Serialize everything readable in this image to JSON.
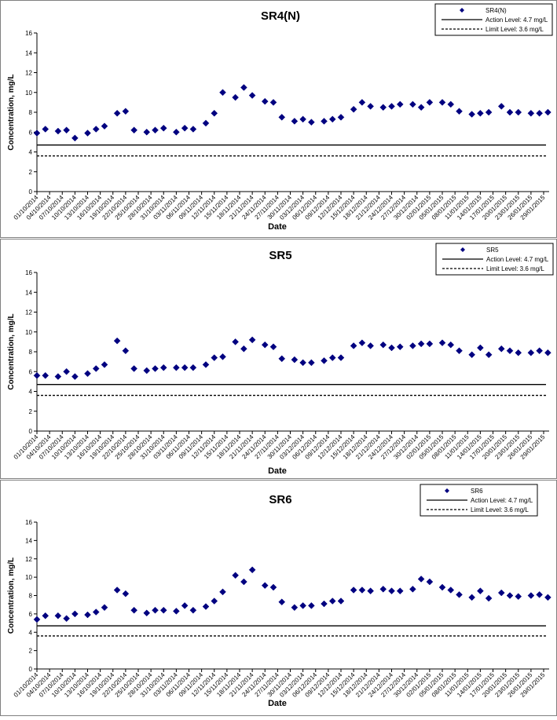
{
  "colors": {
    "marker": "#000080",
    "line": "#000000",
    "panel_border": "#808080"
  },
  "chart_data": [
    {
      "type": "scatter",
      "title": "SR4(N)",
      "xlabel": "Date",
      "ylabel": "Concentration, mg/L",
      "ylim": [
        0,
        16
      ],
      "yticks": [
        0,
        2,
        4,
        6,
        8,
        10,
        12,
        14,
        16
      ],
      "xticks": [
        "01/10/2014",
        "04/10/2014",
        "07/10/2014",
        "10/10/2014",
        "13/10/2014",
        "16/10/2014",
        "19/10/2014",
        "22/10/2014",
        "25/10/2014",
        "28/10/2014",
        "31/10/2014",
        "03/11/2014",
        "06/11/2014",
        "09/11/2014",
        "12/11/2014",
        "15/11/2014",
        "18/11/2014",
        "21/11/2014",
        "24/11/2014",
        "27/11/2014",
        "30/11/2014",
        "03/12/2014",
        "06/12/2014",
        "09/12/2014",
        "12/12/2014",
        "15/12/2014",
        "18/12/2014",
        "21/12/2014",
        "24/12/2014",
        "27/12/2014",
        "30/12/2014",
        "02/01/2015",
        "05/01/2015",
        "08/01/2015",
        "11/01/2015",
        "14/01/2015",
        "17/01/2015",
        "20/01/2015",
        "23/01/2015",
        "26/01/2015",
        "29/01/2015"
      ],
      "grid": false,
      "legend_position": "top-right",
      "series": [
        {
          "name": "SR4(N)",
          "marker": "diamond",
          "x": [
            "01/10/2014",
            "03/10/2014",
            "06/10/2014",
            "08/10/2014",
            "10/10/2014",
            "13/10/2014",
            "15/10/2014",
            "17/10/2014",
            "20/10/2014",
            "22/10/2014",
            "24/10/2014",
            "27/10/2014",
            "29/10/2014",
            "31/10/2014",
            "03/11/2014",
            "05/11/2014",
            "07/11/2014",
            "10/11/2014",
            "12/11/2014",
            "14/11/2014",
            "17/11/2014",
            "19/11/2014",
            "21/11/2014",
            "24/11/2014",
            "26/11/2014",
            "28/11/2014",
            "01/12/2014",
            "03/12/2014",
            "05/12/2014",
            "08/12/2014",
            "10/12/2014",
            "12/12/2014",
            "15/12/2014",
            "17/12/2014",
            "19/12/2014",
            "22/12/2014",
            "24/12/2014",
            "26/12/2014",
            "29/12/2014",
            "31/12/2014",
            "02/01/2015",
            "05/01/2015",
            "07/01/2015",
            "09/01/2015",
            "12/01/2015",
            "14/01/2015",
            "16/01/2015",
            "19/01/2015",
            "21/01/2015",
            "23/01/2015",
            "26/01/2015",
            "28/01/2015",
            "30/01/2015"
          ],
          "y": [
            5.9,
            6.3,
            6.1,
            6.2,
            5.4,
            5.9,
            6.3,
            6.6,
            7.9,
            8.1,
            6.2,
            6.0,
            6.2,
            6.4,
            6.0,
            6.4,
            6.3,
            6.9,
            7.9,
            10.0,
            9.5,
            10.5,
            9.7,
            9.1,
            9.0,
            7.5,
            7.1,
            7.3,
            7.0,
            7.1,
            7.3,
            7.5,
            8.3,
            9.0,
            8.6,
            8.5,
            8.6,
            8.8,
            8.8,
            8.5,
            9.0,
            9.0,
            8.8,
            8.1,
            7.8,
            7.9,
            8.0,
            8.6,
            8.0,
            8.0,
            7.9,
            7.9,
            8.0
          ]
        },
        {
          "name": "Action Level: 4.7 mg/L",
          "style": "solid",
          "y": 4.7
        },
        {
          "name": "Limit Level: 3.6 mg/L",
          "style": "dashed",
          "y": 3.6
        }
      ]
    },
    {
      "type": "scatter",
      "title": "SR5",
      "xlabel": "Date",
      "ylabel": "Concentration, mg/L",
      "ylim": [
        0,
        16
      ],
      "yticks": [
        0,
        2,
        4,
        6,
        8,
        10,
        12,
        14,
        16
      ],
      "xticks": [
        "01/10/2014",
        "04/10/2014",
        "07/10/2014",
        "10/10/2014",
        "13/10/2014",
        "16/10/2014",
        "19/10/2014",
        "22/10/2014",
        "25/10/2014",
        "28/10/2014",
        "31/10/2014",
        "03/11/2014",
        "06/11/2014",
        "09/11/2014",
        "12/11/2014",
        "15/11/2014",
        "18/11/2014",
        "21/11/2014",
        "24/11/2014",
        "27/11/2014",
        "30/11/2014",
        "03/12/2014",
        "06/12/2014",
        "09/12/2014",
        "12/12/2014",
        "15/12/2014",
        "18/12/2014",
        "21/12/2014",
        "24/12/2014",
        "27/12/2014",
        "30/12/2014",
        "02/01/2015",
        "05/01/2015",
        "08/01/2015",
        "11/01/2015",
        "14/01/2015",
        "17/01/2015",
        "20/01/2015",
        "23/01/2015",
        "26/01/2015",
        "29/01/2015"
      ],
      "grid": false,
      "legend_position": "top-right",
      "series": [
        {
          "name": "SR5",
          "marker": "diamond",
          "x": [
            "01/10/2014",
            "03/10/2014",
            "06/10/2014",
            "08/10/2014",
            "10/10/2014",
            "13/10/2014",
            "15/10/2014",
            "17/10/2014",
            "20/10/2014",
            "22/10/2014",
            "24/10/2014",
            "27/10/2014",
            "29/10/2014",
            "31/10/2014",
            "03/11/2014",
            "05/11/2014",
            "07/11/2014",
            "10/11/2014",
            "12/11/2014",
            "14/11/2014",
            "17/11/2014",
            "19/11/2014",
            "21/11/2014",
            "24/11/2014",
            "26/11/2014",
            "28/11/2014",
            "01/12/2014",
            "03/12/2014",
            "05/12/2014",
            "08/12/2014",
            "10/12/2014",
            "12/12/2014",
            "15/12/2014",
            "17/12/2014",
            "19/12/2014",
            "22/12/2014",
            "24/12/2014",
            "26/12/2014",
            "29/12/2014",
            "31/12/2014",
            "02/01/2015",
            "05/01/2015",
            "07/01/2015",
            "09/01/2015",
            "12/01/2015",
            "14/01/2015",
            "16/01/2015",
            "19/01/2015",
            "21/01/2015",
            "23/01/2015",
            "26/01/2015",
            "28/01/2015",
            "30/01/2015"
          ],
          "y": [
            5.6,
            5.6,
            5.5,
            6.0,
            5.5,
            5.8,
            6.3,
            6.7,
            9.1,
            8.1,
            6.3,
            6.1,
            6.3,
            6.4,
            6.4,
            6.4,
            6.4,
            6.7,
            7.4,
            7.5,
            9.0,
            8.3,
            9.2,
            8.7,
            8.5,
            7.3,
            7.2,
            6.9,
            6.9,
            7.1,
            7.4,
            7.4,
            8.6,
            8.9,
            8.6,
            8.7,
            8.4,
            8.5,
            8.6,
            8.8,
            8.8,
            8.9,
            8.7,
            8.1,
            7.7,
            8.4,
            7.7,
            8.3,
            8.1,
            7.9,
            7.9,
            8.1,
            7.9
          ]
        },
        {
          "name": "Action Level: 4.7 mg/L",
          "style": "solid",
          "y": 4.7
        },
        {
          "name": "Limit Level: 3.6 mg/L",
          "style": "dashed",
          "y": 3.6
        }
      ]
    },
    {
      "type": "scatter",
      "title": "SR6",
      "xlabel": "Date",
      "ylabel": "Concentration, mg/L",
      "ylim": [
        0,
        16
      ],
      "yticks": [
        0,
        2,
        4,
        6,
        8,
        10,
        12,
        14,
        16
      ],
      "xticks": [
        "01/10/2014",
        "04/10/2014",
        "07/10/2014",
        "10/10/2014",
        "13/10/2014",
        "16/10/2014",
        "19/10/2014",
        "22/10/2014",
        "25/10/2014",
        "28/10/2014",
        "31/10/2014",
        "03/11/2014",
        "06/11/2014",
        "09/11/2014",
        "12/11/2014",
        "15/11/2014",
        "18/11/2014",
        "21/11/2014",
        "24/11/2014",
        "27/11/2014",
        "30/11/2014",
        "03/12/2014",
        "06/12/2014",
        "09/12/2014",
        "12/12/2014",
        "15/12/2014",
        "18/12/2014",
        "21/12/2014",
        "24/12/2014",
        "27/12/2014",
        "30/12/2014",
        "02/01/2015",
        "05/01/2015",
        "08/01/2015",
        "11/01/2015",
        "14/01/2015",
        "17/01/2015",
        "20/01/2015",
        "23/01/2015",
        "26/01/2015",
        "29/01/2015"
      ],
      "grid": false,
      "legend_position": "top-right",
      "series": [
        {
          "name": "SR6",
          "marker": "diamond",
          "x": [
            "01/10/2014",
            "03/10/2014",
            "06/10/2014",
            "08/10/2014",
            "10/10/2014",
            "13/10/2014",
            "15/10/2014",
            "17/10/2014",
            "20/10/2014",
            "22/10/2014",
            "24/10/2014",
            "27/10/2014",
            "29/10/2014",
            "31/10/2014",
            "03/11/2014",
            "05/11/2014",
            "07/11/2014",
            "10/11/2014",
            "12/11/2014",
            "14/11/2014",
            "17/11/2014",
            "19/11/2014",
            "21/11/2014",
            "24/11/2014",
            "26/11/2014",
            "28/11/2014",
            "01/12/2014",
            "03/12/2014",
            "05/12/2014",
            "08/12/2014",
            "10/12/2014",
            "12/12/2014",
            "15/12/2014",
            "17/12/2014",
            "19/12/2014",
            "22/12/2014",
            "24/12/2014",
            "26/12/2014",
            "29/12/2014",
            "31/12/2014",
            "02/01/2015",
            "05/01/2015",
            "07/01/2015",
            "09/01/2015",
            "12/01/2015",
            "14/01/2015",
            "16/01/2015",
            "19/01/2015",
            "21/01/2015",
            "23/01/2015",
            "26/01/2015",
            "28/01/2015",
            "30/01/2015"
          ],
          "y": [
            5.4,
            5.8,
            5.8,
            5.5,
            6.0,
            5.9,
            6.2,
            6.7,
            8.6,
            8.2,
            6.4,
            6.1,
            6.4,
            6.4,
            6.3,
            6.9,
            6.4,
            6.8,
            7.4,
            8.4,
            10.2,
            9.5,
            10.8,
            9.1,
            8.9,
            7.3,
            6.7,
            6.9,
            6.9,
            7.1,
            7.4,
            7.4,
            8.6,
            8.6,
            8.5,
            8.7,
            8.5,
            8.5,
            8.7,
            9.8,
            9.5,
            8.9,
            8.6,
            8.1,
            7.8,
            8.5,
            7.7,
            8.3,
            8.0,
            7.9,
            8.0,
            8.1,
            7.8
          ]
        },
        {
          "name": "Action Level: 4.7 mg/L",
          "style": "solid",
          "y": 4.7
        },
        {
          "name": "Limit Level: 3.6 mg/L",
          "style": "dashed",
          "y": 3.6
        }
      ]
    }
  ]
}
